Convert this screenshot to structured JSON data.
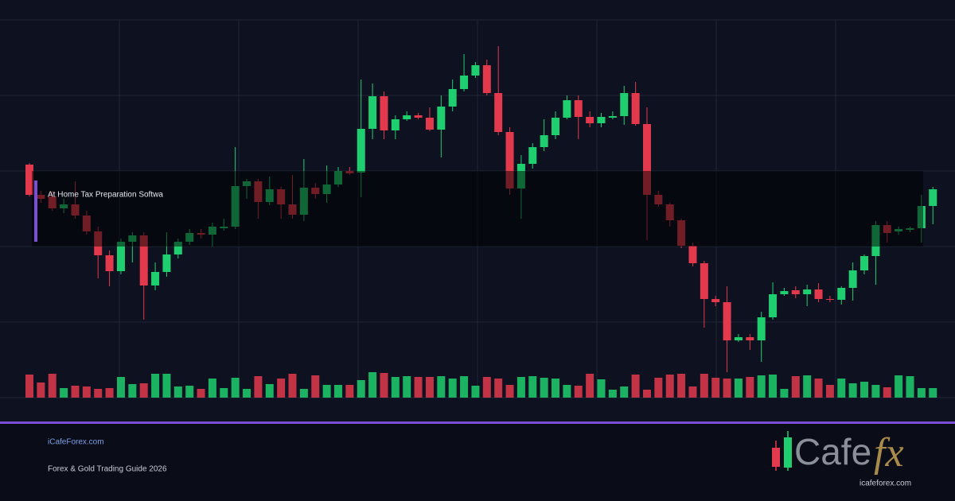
{
  "chart_data": {
    "type": "candlestick",
    "up_color": "#1fcf6f",
    "down_color": "#e23a4c",
    "ylim": [
      0,
      475
    ],
    "yticks": [
      0,
      95,
      190,
      285,
      380,
      475
    ],
    "grid": true,
    "open": [
      293,
      255,
      253,
      238,
      243,
      229,
      209,
      179,
      159,
      196,
      204,
      141,
      158,
      180,
      196,
      207,
      205,
      213,
      215,
      266,
      272,
      246,
      262,
      243,
      230,
      264,
      256,
      268,
      285,
      283,
      338,
      379,
      336,
      350,
      355,
      352,
      337,
      366,
      388,
      405,
      418,
      383,
      334,
      263,
      294,
      315,
      330,
      352,
      374,
      353,
      345,
      352,
      354,
      383,
      344,
      255,
      243,
      223,
      191,
      169,
      124,
      120,
      72,
      76,
      72,
      101,
      130,
      135,
      130,
      136,
      124,
      123,
      138,
      160,
      178,
      217,
      209,
      211,
      213,
      241
    ],
    "high": [
      295,
      260,
      260,
      250,
      272,
      235,
      215,
      185,
      200,
      208,
      208,
      170,
      208,
      200,
      212,
      212,
      220,
      225,
      315,
      275,
      275,
      278,
      265,
      280,
      300,
      270,
      292,
      290,
      290,
      400,
      395,
      385,
      355,
      360,
      358,
      365,
      380,
      400,
      432,
      422,
      425,
      442,
      340,
      305,
      320,
      350,
      360,
      380,
      380,
      360,
      358,
      360,
      392,
      397,
      365,
      260,
      245,
      225,
      195,
      172,
      128,
      140,
      80,
      80,
      108,
      145,
      138,
      140,
      142,
      144,
      128,
      140,
      170,
      180,
      222,
      222,
      215,
      215,
      255,
      265
    ],
    "low": [
      253,
      245,
      235,
      232,
      225,
      205,
      150,
      140,
      155,
      170,
      98,
      135,
      152,
      175,
      192,
      200,
      190,
      210,
      212,
      250,
      225,
      242,
      225,
      225,
      222,
      250,
      245,
      265,
      280,
      252,
      325,
      325,
      325,
      348,
      350,
      335,
      302,
      360,
      385,
      402,
      380,
      330,
      255,
      225,
      288,
      310,
      325,
      350,
      325,
      340,
      340,
      350,
      343,
      342,
      198,
      240,
      215,
      188,
      165,
      88,
      115,
      32,
      70,
      60,
      45,
      98,
      128,
      125,
      115,
      120,
      120,
      117,
      122,
      155,
      142,
      195,
      205,
      208,
      195,
      218
    ],
    "close": [
      255,
      250,
      238,
      243,
      229,
      209,
      179,
      159,
      196,
      204,
      141,
      158,
      180,
      196,
      207,
      205,
      215,
      215,
      266,
      272,
      246,
      262,
      243,
      230,
      264,
      256,
      268,
      285,
      282,
      338,
      379,
      336,
      350,
      355,
      352,
      337,
      366,
      388,
      405,
      418,
      383,
      334,
      263,
      294,
      315,
      330,
      352,
      374,
      353,
      345,
      353,
      354,
      383,
      344,
      255,
      243,
      223,
      191,
      169,
      124,
      120,
      72,
      76,
      72,
      101,
      130,
      134,
      130,
      136,
      124,
      123,
      138,
      160,
      178,
      217,
      207,
      212,
      213,
      241,
      262
    ],
    "volume": [
      29,
      19,
      30,
      12,
      15,
      14,
      11,
      12,
      26,
      17,
      18,
      30,
      30,
      14,
      15,
      11,
      24,
      12,
      25,
      11,
      27,
      17,
      24,
      30,
      11,
      28,
      16,
      16,
      16,
      22,
      32,
      31,
      26,
      27,
      26,
      26,
      27,
      24,
      27,
      15,
      26,
      24,
      16,
      26,
      27,
      25,
      24,
      16,
      15,
      30,
      23,
      10,
      14,
      29,
      10,
      25,
      29,
      30,
      14,
      30,
      25,
      24,
      24,
      26,
      28,
      29,
      11,
      27,
      28,
      24,
      16,
      24,
      18,
      20,
      16,
      13,
      28,
      27,
      12,
      12
    ]
  },
  "overlay_label": "At Home Tax Preparation Softwa",
  "footer": {
    "site": "iCafeForex.com",
    "tagline": "Forex & Gold Trading Guide 2026"
  },
  "logo": {
    "word": "Cafe",
    "accent": "fx",
    "url": "icafeforex.com"
  }
}
